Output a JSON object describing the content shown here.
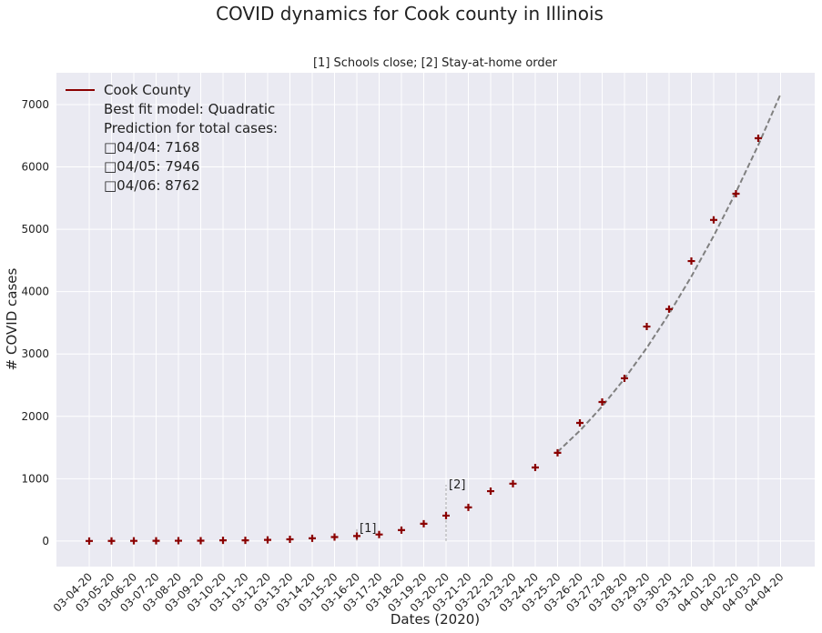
{
  "chart_data": {
    "type": "scatter",
    "title": "COVID dynamics for Cook county in Illinois",
    "subtitle": "[1] Schools close; [2] Stay-at-home order",
    "xlabel": "Dates (2020)",
    "ylabel": "# COVID cases",
    "categories": [
      "03-04-20",
      "03-05-20",
      "03-06-20",
      "03-07-20",
      "03-08-20",
      "03-09-20",
      "03-10-20",
      "03-11-20",
      "03-12-20",
      "03-13-20",
      "03-14-20",
      "03-15-20",
      "03-16-20",
      "03-17-20",
      "03-18-20",
      "03-19-20",
      "03-20-20",
      "03-21-20",
      "03-22-20",
      "03-23-20",
      "03-24-20",
      "03-25-20",
      "03-26-20",
      "03-27-20",
      "03-28-20",
      "03-29-20",
      "03-30-20",
      "03-31-20",
      "04-01-20",
      "04-02-20",
      "04-03-20",
      "04-04-20"
    ],
    "series": [
      {
        "name": "Cook County",
        "color": "#8b0000",
        "values": [
          1,
          2,
          3,
          4,
          5,
          6,
          11,
          11,
          18,
          28,
          44,
          64,
          80,
          105,
          175,
          277,
          408,
          540,
          800,
          920,
          1180,
          1415,
          1895,
          2230,
          2610,
          3440,
          3720,
          4490,
          5150,
          5570,
          6460,
          null
        ]
      }
    ],
    "fit": {
      "color": "#808080",
      "values": [
        null,
        null,
        null,
        null,
        null,
        null,
        null,
        null,
        null,
        null,
        null,
        null,
        null,
        null,
        null,
        null,
        null,
        null,
        null,
        null,
        null,
        1430,
        1769,
        2160,
        2603,
        3098,
        3645,
        4243,
        4893,
        5596,
        6350,
        7168
      ]
    },
    "legend_notes": [
      "Best fit model: Quadratic",
      "Prediction for total cases:",
      "□04/04: 7168",
      "□04/05: 7946",
      "□04/06: 8762"
    ],
    "annotations": [
      {
        "text": "[1]",
        "x": "03-16-20",
        "y": 200
      },
      {
        "text": "[2]",
        "x": "03-20-20",
        "y": 900
      }
    ],
    "ylim": [
      -410,
      7510
    ],
    "yticks": [
      0,
      1000,
      2000,
      3000,
      4000,
      5000,
      6000,
      7000
    ],
    "grid": true,
    "legend": "upper left"
  }
}
